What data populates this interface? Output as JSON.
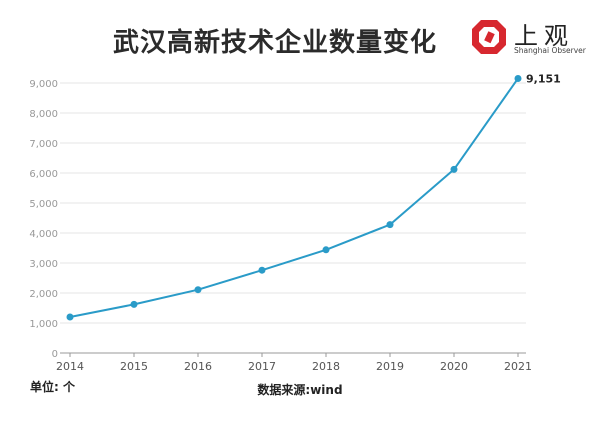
{
  "title": "武汉高新技术企业数量变化",
  "logo": {
    "name": "上观",
    "subtitle": "Shanghai Observer",
    "colors": {
      "mark": "#d7282f",
      "text": "#222222"
    }
  },
  "unit_label": "单位: 个",
  "source_label": "数据来源:wind",
  "chart_data": {
    "type": "line",
    "categories": [
      "2014",
      "2015",
      "2016",
      "2017",
      "2018",
      "2019",
      "2020",
      "2021"
    ],
    "values": [
      1200,
      1620,
      2110,
      2760,
      3440,
      4280,
      6120,
      9151
    ],
    "ylim": [
      0,
      9000
    ],
    "yticks": [
      0,
      1000,
      2000,
      3000,
      4000,
      5000,
      6000,
      7000,
      8000,
      9000
    ],
    "ytick_labels": [
      "0",
      "1,000",
      "2,000",
      "3,000",
      "4,000",
      "5,000",
      "6,000",
      "7,000",
      "8,000",
      "9,000"
    ],
    "annotations": [
      {
        "index": 7,
        "text": "9,151"
      }
    ],
    "grid": true,
    "colors": {
      "line": "#2a9bc8",
      "grid": "#e6e6e6",
      "axis": "#999999",
      "tick_label": "#555555"
    }
  }
}
